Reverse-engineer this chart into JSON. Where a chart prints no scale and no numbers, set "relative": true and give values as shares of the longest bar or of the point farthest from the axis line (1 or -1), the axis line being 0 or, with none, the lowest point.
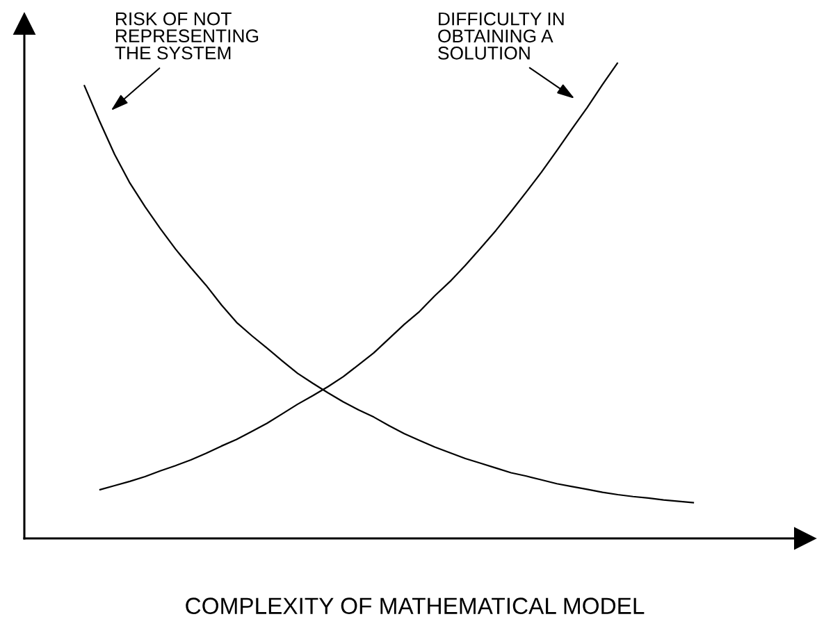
{
  "chart_data": {
    "type": "line",
    "relative": true,
    "line_style": "solid",
    "xlabel": "COMPLEXITY OF MATHEMATICAL MODEL",
    "categories": [
      null,
      null,
      null,
      null,
      null,
      null,
      null,
      null,
      null,
      null,
      null,
      null,
      null,
      null,
      null,
      null,
      null,
      null,
      null,
      null,
      null,
      null,
      null,
      null,
      null,
      null,
      null,
      null,
      null,
      null,
      null,
      null,
      null,
      null,
      null,
      null,
      null,
      null,
      null,
      null,
      null
    ],
    "series": [
      {
        "name": "RISK OF NOT\nREPRESENTING\nTHE SYSTEM",
        "color": "#000000",
        "values": [
          0.953,
          0.878,
          0.807,
          0.747,
          0.697,
          0.651,
          0.608,
          0.569,
          0.532,
          0.491,
          0.454,
          0.426,
          0.4,
          0.373,
          0.347,
          0.326,
          0.306,
          0.287,
          0.27,
          0.255,
          0.237,
          0.22,
          0.206,
          0.192,
          0.18,
          0.168,
          0.158,
          0.148,
          0.138,
          0.131,
          0.123,
          0.115,
          0.109,
          0.103,
          0.097,
          0.092,
          0.088,
          0.085,
          0.081,
          0.078,
          0.075
        ]
      },
      {
        "name": "DIFFICULTY IN\nOBTAINING A\nSOLUTION",
        "color": "#000000",
        "values": [
          null,
          0.102,
          0.111,
          0.12,
          0.13,
          0.142,
          0.153,
          0.165,
          0.179,
          0.194,
          0.208,
          0.225,
          0.242,
          0.262,
          0.282,
          0.3,
          0.319,
          0.34,
          0.365,
          0.39,
          0.42,
          0.45,
          0.477,
          0.51,
          0.54,
          0.574,
          0.61,
          0.647,
          0.687,
          0.728,
          0.77,
          0.815,
          0.861,
          0.906,
          0.954,
          1.0,
          null,
          null,
          null,
          null,
          null
        ]
      }
    ]
  }
}
